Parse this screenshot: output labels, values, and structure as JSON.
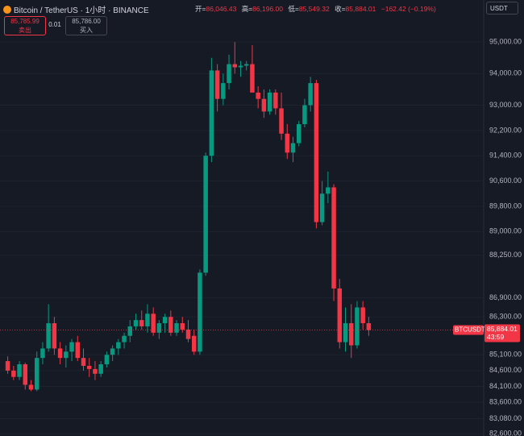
{
  "header": {
    "symbol": "Bitcoin / TetherUS · 1小时 · BINANCE",
    "open_label": "开",
    "open": "86,046.43",
    "high_label": "高",
    "high": "86,196.00",
    "low_label": "低",
    "low": "85,549.32",
    "close_label": "收",
    "close": "85,884.01",
    "change": "−162.42 (−0.19%)",
    "currency": "USDT",
    "sell_price": "85,785.99",
    "sell_label": "卖出",
    "spread": "0.01",
    "buy_price": "85,786.00",
    "buy_label": "买入"
  },
  "chart_data": {
    "type": "candlestick",
    "up_color": "#089981",
    "down_color": "#f23645",
    "grid": true,
    "open": [
      84900,
      84600,
      84400,
      84800,
      84150,
      84000,
      85000,
      85300,
      86100,
      85300,
      85000,
      85200,
      85500,
      85000,
      84750,
      84650,
      84500,
      84800,
      85100,
      85300,
      85500,
      85700,
      86000,
      86200,
      86000,
      86400,
      85800,
      86100,
      86300,
      85800,
      86100,
      85900,
      85700,
      85200,
      87700,
      91400,
      94100,
      93200,
      93700,
      94300,
      94200,
      94250,
      94300,
      93400,
      93200,
      92800,
      93400,
      92900,
      92100,
      91500,
      91800,
      92400,
      93000,
      93700,
      89300,
      90200,
      90400,
      87200,
      85500,
      86100,
      85400,
      86600,
      86100
    ],
    "high": [
      85050,
      84750,
      84900,
      84850,
      84300,
      85200,
      85500,
      86700,
      86300,
      85500,
      85400,
      85600,
      85700,
      85300,
      85000,
      84900,
      84900,
      85200,
      85400,
      85600,
      85800,
      86200,
      86400,
      86500,
      86700,
      86600,
      86200,
      86400,
      86500,
      86200,
      86300,
      86200,
      85900,
      87800,
      91500,
      94500,
      94300,
      94000,
      94600,
      95000,
      94400,
      94400,
      94900,
      93600,
      93500,
      93500,
      93500,
      93400,
      92400,
      92000,
      92500,
      93200,
      93900,
      93800,
      90600,
      90900,
      90500,
      87500,
      86600,
      86700,
      86800,
      86800,
      86300
    ],
    "low": [
      84500,
      84300,
      84300,
      84000,
      83950,
      83950,
      84800,
      85200,
      85100,
      84800,
      84700,
      84900,
      84900,
      84600,
      84400,
      84300,
      84400,
      84700,
      84900,
      85100,
      85300,
      85500,
      85900,
      85900,
      85800,
      85700,
      85600,
      85800,
      85700,
      85700,
      85800,
      85500,
      85100,
      85100,
      87600,
      91200,
      92800,
      93000,
      93500,
      94000,
      93900,
      94100,
      93500,
      92900,
      92600,
      92700,
      92700,
      91900,
      91300,
      91200,
      91700,
      92300,
      92800,
      89100,
      89200,
      89900,
      86800,
      85300,
      85200,
      85000,
      85300,
      85900,
      85700
    ],
    "close": [
      84600,
      84400,
      84800,
      84150,
      84000,
      85000,
      85300,
      86100,
      85300,
      85000,
      85200,
      85500,
      85000,
      84750,
      84650,
      84500,
      84800,
      85100,
      85300,
      85500,
      85700,
      86000,
      86200,
      86000,
      86400,
      85800,
      86100,
      86300,
      85800,
      86100,
      85900,
      85600,
      85200,
      87700,
      91400,
      94100,
      93200,
      93700,
      94300,
      94200,
      94250,
      94300,
      93400,
      93200,
      92800,
      93400,
      92900,
      92100,
      91500,
      91800,
      92400,
      93000,
      93700,
      89300,
      90200,
      90400,
      87200,
      85500,
      86100,
      85400,
      86600,
      86100,
      85884
    ],
    "ylim": [
      82530,
      96330
    ],
    "yticks": [
      {
        "value": 95000,
        "label": "95,000.00"
      },
      {
        "value": 94000,
        "label": "94,000.00"
      },
      {
        "value": 93000,
        "label": "93,000.00"
      },
      {
        "value": 92200,
        "label": "92,200.00"
      },
      {
        "value": 91400,
        "label": "91,400.00"
      },
      {
        "value": 90600,
        "label": "90,600.00"
      },
      {
        "value": 89800,
        "label": "89,800.00"
      },
      {
        "value": 89000,
        "label": "89,000.00"
      },
      {
        "value": 88250,
        "label": "88,250.00"
      },
      {
        "value": 86900,
        "label": "86,900.00"
      },
      {
        "value": 86300,
        "label": "86,300.00"
      },
      {
        "value": 85100,
        "label": "85,100.00"
      },
      {
        "value": 84600,
        "label": "84,600.00"
      },
      {
        "value": 84100,
        "label": "84,100.00"
      },
      {
        "value": 83600,
        "label": "83,600.00"
      },
      {
        "value": 83080,
        "label": "83,080.00"
      },
      {
        "value": 82600,
        "label": "82,600.00"
      }
    ],
    "last_price": {
      "value": 85884.01,
      "label": "85,884.01"
    },
    "price_tag_name": "BTCUSDT",
    "countdown": "43:59"
  }
}
